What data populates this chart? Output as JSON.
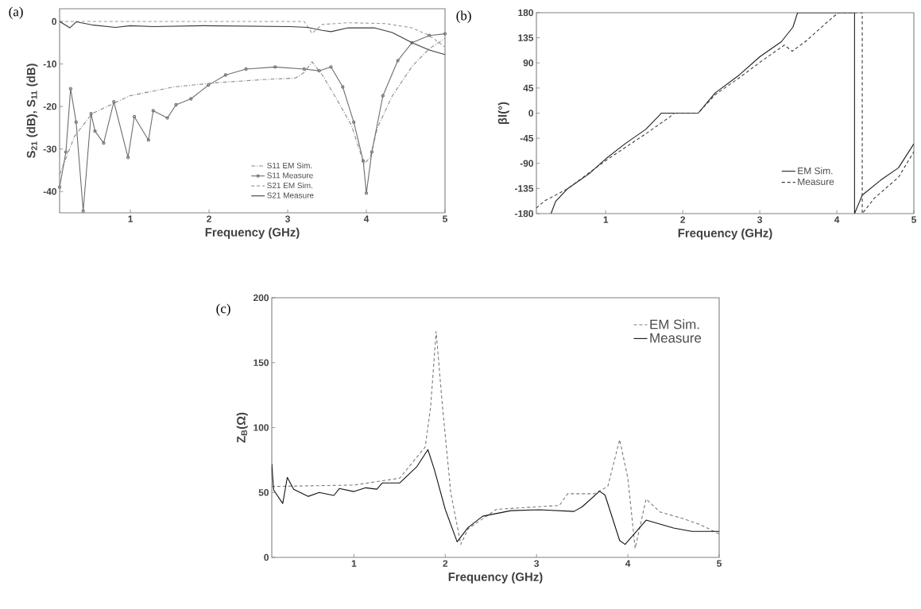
{
  "chart_data": [
    {
      "type": "line",
      "title": "(a)",
      "xlabel": "Frequency (GHz)",
      "ylabel": "S$_{21}$ (dB), S$_{11}$ (dB)",
      "xlim": [
        0.1,
        5
      ],
      "ylim": [
        -45,
        3
      ],
      "xticks": [
        1,
        2,
        3,
        4,
        5
      ],
      "yticks": [
        -40,
        -30,
        -20,
        -10,
        0
      ],
      "legend": "bottom",
      "series": [
        {
          "name": "S11 EM Sim.",
          "color": "#8a8a8a",
          "line_style": "dashdot",
          "marker": "none",
          "x": [
            0.1,
            0.29,
            0.51,
            0.99,
            1.55,
            2.1,
            2.66,
            3.1,
            3.21,
            3.31,
            3.44,
            3.62,
            3.81,
            3.97,
            4.05,
            4.14,
            4.33,
            4.58,
            4.8,
            5
          ],
          "values": [
            -36,
            -27,
            -21.7,
            -17.5,
            -15.4,
            -14.4,
            -13.7,
            -13.3,
            -12,
            -9.5,
            -12.6,
            -18.2,
            -24.4,
            -33.5,
            -32,
            -25,
            -17.5,
            -10.6,
            -6.4,
            -4
          ]
        },
        {
          "name": "S11 Measure",
          "color": "#6e6e6e",
          "line_style": "solid",
          "marker": "circle",
          "x": [
            0.1,
            0.18,
            0.24,
            0.31,
            0.4,
            0.5,
            0.55,
            0.66,
            0.79,
            0.97,
            1.05,
            1.23,
            1.29,
            1.47,
            1.58,
            1.77,
            1.99,
            2.21,
            2.47,
            2.84,
            3.21,
            3.4,
            3.55,
            3.7,
            3.84,
            3.96,
            4.0,
            4.07,
            4.21,
            4.4,
            4.58,
            4.8,
            5
          ],
          "values": [
            -39,
            -30.7,
            -15.8,
            -23.7,
            -44.6,
            -21.7,
            -25.8,
            -28.6,
            -18.9,
            -32,
            -22.4,
            -27.9,
            -21,
            -22.7,
            -19.6,
            -18.2,
            -15,
            -12.6,
            -11.2,
            -10.7,
            -11.2,
            -11.6,
            -10.7,
            -15.4,
            -23.7,
            -32.8,
            -40.4,
            -30.7,
            -17.5,
            -9.2,
            -5,
            -3.3,
            -2.9
          ]
        },
        {
          "name": "S21 EM Sim.",
          "color": "#9a9a9a",
          "line_style": "dashed",
          "marker": "none",
          "x": [
            0.1,
            1,
            2,
            3,
            3.21,
            3.31,
            3.44,
            3.77,
            4.25,
            4.58,
            4.8,
            5
          ],
          "values": [
            0,
            0,
            0,
            0,
            0,
            -2.8,
            -0.7,
            -0.3,
            -0.5,
            -1.5,
            -3.3,
            -6
          ]
        },
        {
          "name": "S21 Measure",
          "color": "#3a3a3a",
          "line_style": "solid",
          "marker": "none",
          "x": [
            0.1,
            0.23,
            0.31,
            0.51,
            0.81,
            1,
            1.29,
            1.92,
            3.03,
            3.25,
            3.44,
            3.55,
            3.77,
            4.1,
            4.33,
            4.58,
            4.8,
            5
          ],
          "values": [
            0,
            -1.5,
            -0.1,
            -0.8,
            -1.4,
            -1,
            -1.2,
            -1,
            -1.2,
            -1.4,
            -2.1,
            -2.4,
            -1.5,
            -1.5,
            -2.6,
            -5,
            -6.7,
            -7.8
          ]
        }
      ]
    },
    {
      "type": "line",
      "title": "(b)",
      "xlabel": "Frequency (GHz)",
      "ylabel": "βl(°)",
      "xlim": [
        0.1,
        5
      ],
      "ylim": [
        -180,
        180
      ],
      "xticks": [
        1,
        2,
        3,
        4,
        5
      ],
      "yticks": [
        -180,
        -135,
        -90,
        -45,
        0,
        45,
        90,
        135,
        180
      ],
      "legend": "bottom right",
      "series": [
        {
          "name": "EM Sim.",
          "color": "#1e1e1e",
          "line_style": "solid",
          "marker": "none",
          "x": [
            0.29,
            0.35,
            0.5,
            0.78,
            1,
            1.25,
            1.52,
            1.71,
            1.72,
            2.2,
            2.42,
            2.73,
            3.0,
            3.28,
            3.43,
            3.49,
            4.23,
            4.23,
            4.33,
            4.57,
            4.8,
            5
          ],
          "values": [
            -180,
            -158,
            -136,
            -109,
            -82,
            -55,
            -29,
            -2,
            0,
            0,
            36,
            68,
            101,
            128,
            154,
            180,
            180,
            -180,
            -147,
            -120,
            -98,
            -55
          ]
        },
        {
          "name": "Measure",
          "color": "#3c3c3c",
          "line_style": "dashed",
          "marker": "none",
          "x": [
            0.1,
            0.21,
            0.5,
            1,
            1.52,
            1.83,
            1.89,
            2.2,
            2.42,
            2.73,
            3.04,
            3.32,
            3.42,
            3.59,
            3.94,
            4.02,
            4.33,
            4.33,
            4.49,
            4.8,
            5
          ],
          "values": [
            -170,
            -157,
            -136,
            -85,
            -37,
            -7,
            0,
            0,
            33,
            63,
            95,
            122,
            111,
            128,
            171,
            180,
            180,
            -180,
            -152,
            -115,
            -69
          ]
        }
      ]
    },
    {
      "type": "line",
      "title": "(c)",
      "xlabel": "Frequency (GHz)",
      "ylabel": "Z$_{B}$(Ω)",
      "xlim": [
        0.1,
        5
      ],
      "ylim": [
        0,
        200
      ],
      "xticks": [
        1,
        2,
        3,
        4,
        5
      ],
      "yticks": [
        0,
        50,
        100,
        150,
        200
      ],
      "legend": "top right",
      "series": [
        {
          "name": "EM Sim.",
          "color": "#7a7a7a",
          "line_style": "dashed",
          "marker": "none",
          "x": [
            0.1,
            1,
            1.5,
            1.78,
            1.84,
            1.9,
            1.97,
            2.06,
            2.17,
            2.25,
            2.56,
            3.25,
            3.34,
            3.63,
            3.78,
            3.91,
            4.0,
            4.08,
            4.2,
            4.35,
            4.6,
            4.8,
            5
          ],
          "values": [
            54.6,
            55.7,
            61,
            85,
            116,
            174,
            116,
            50,
            10,
            22,
            37,
            40,
            49,
            49,
            54.6,
            90.7,
            61,
            7,
            45,
            35,
            30,
            25,
            18
          ]
        },
        {
          "name": "Measure",
          "color": "#111111",
          "line_style": "solid",
          "marker": "none",
          "x": [
            0.1,
            0.12,
            0.22,
            0.27,
            0.34,
            0.5,
            0.62,
            0.78,
            0.84,
            1,
            1.13,
            1.25,
            1.31,
            1.5,
            1.69,
            1.81,
            1.88,
            2,
            2.13,
            2.25,
            2.41,
            2.72,
            3.03,
            3.41,
            3.5,
            3.69,
            3.75,
            3.91,
            3.97,
            4.2,
            4.5,
            4.7,
            5
          ],
          "values": [
            72,
            52,
            41.5,
            61.6,
            52.5,
            47,
            50,
            47.7,
            53,
            50.7,
            53.6,
            52.5,
            57.3,
            57.3,
            70,
            83,
            67.8,
            37,
            12,
            23,
            31.7,
            36,
            36.7,
            35.4,
            39,
            51,
            48,
            13,
            10,
            28.7,
            22.6,
            20,
            20
          ]
        }
      ]
    }
  ]
}
